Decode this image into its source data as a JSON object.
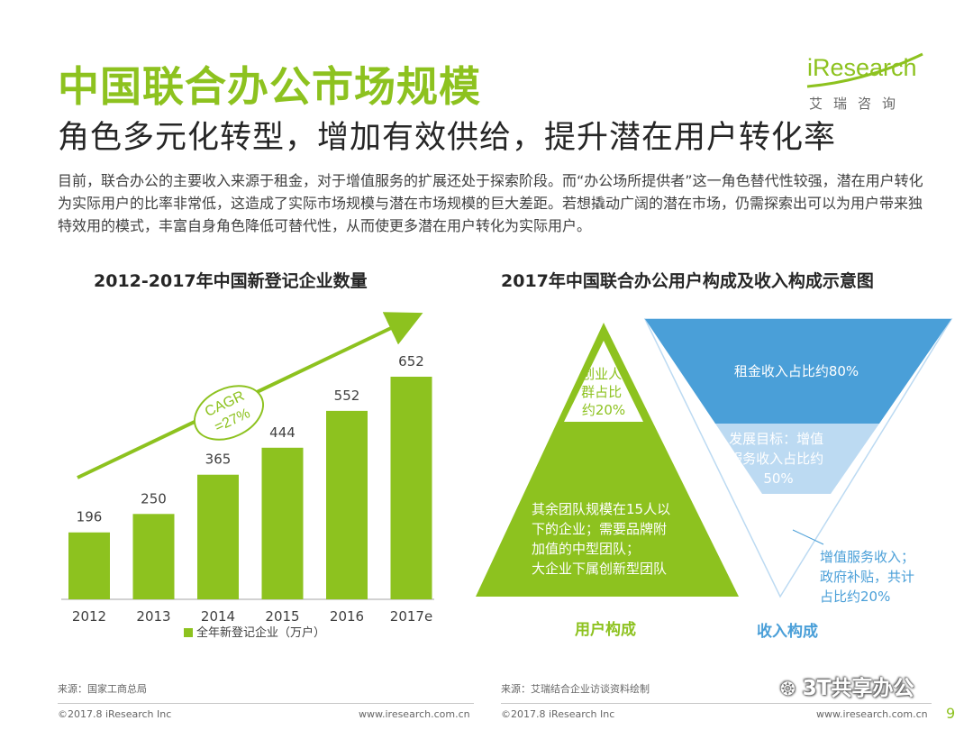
{
  "header": {
    "title": "中国联合办公市场规模",
    "subtitle": "角色多元化转型，增加有效供给，提升潜在用户转化率",
    "intro": "目前，联合办公的主要收入来源于租金，对于增值服务的扩展还处于探索阶段。而“办公场所提供者”这一角色替代性较强，潜在用户转化为实际用户的比率非常低，这造成了实际市场规模与潜在市场规模的巨大差距。若想撬动广阔的潜在市场，仍需探索出可以为用户带来独特效用的模式，丰富自身角色降低可替代性，从而使更多潜在用户转化为实际用户。"
  },
  "logo": {
    "brand": "iResearch",
    "sub": "艾瑞咨询"
  },
  "bar_chart": {
    "title": "2012-2017年中国新登记企业数量",
    "cagr_label": "CAGR",
    "cagr_value": "=27%"
  },
  "composition": {
    "title": "2017年中国联合办公用户构成及收入构成示意图",
    "user_top": "创业人群占比约20%",
    "user_top_lines": [
      "创业人",
      "群占比",
      "约20%"
    ],
    "user_bottom_lines": [
      "其余团队规模在15人以",
      "下的企业；需要品牌附",
      "加值的中型团队；",
      "大企业下属创新型团队"
    ],
    "revenue_top": "租金收入占比约80%",
    "revenue_mid_lines": [
      "发展目标：增值",
      "服务收入占比约",
      "50%"
    ],
    "revenue_note_lines": [
      "增值服务收入；",
      "政府补贴，共计",
      "占比约20%"
    ],
    "user_label": "用户构成",
    "revenue_label": "收入构成"
  },
  "colors": {
    "green": "#8dc21f",
    "blue": "#4a9fd8",
    "light_blue": "#bcdaf2"
  },
  "chart_data": {
    "type": "bar",
    "title": "2012-2017年中国新登记企业数量",
    "categories": [
      "2012",
      "2013",
      "2014",
      "2015",
      "2016",
      "2017e"
    ],
    "series": [
      {
        "name": "全年新登记企业（万户）",
        "values": [
          196,
          250,
          365,
          444,
          552,
          652
        ]
      }
    ],
    "ylim": [
      0,
      652
    ],
    "grid": false,
    "legend": "bottom",
    "annotation": "CAGR =27%"
  },
  "footer": {
    "source_left": "来源：国家工商总局",
    "source_right": "来源：艾瑞结合企业访谈资料绘制",
    "copyright_left": "©2017.8 iResearch Inc",
    "url_left": "www.iresearch.com.cn",
    "copyright_right": "©2017.8 iResearch Inc",
    "url_right": "www.iresearch.com.cn",
    "watermark": "3T共享办公",
    "page": "9"
  }
}
